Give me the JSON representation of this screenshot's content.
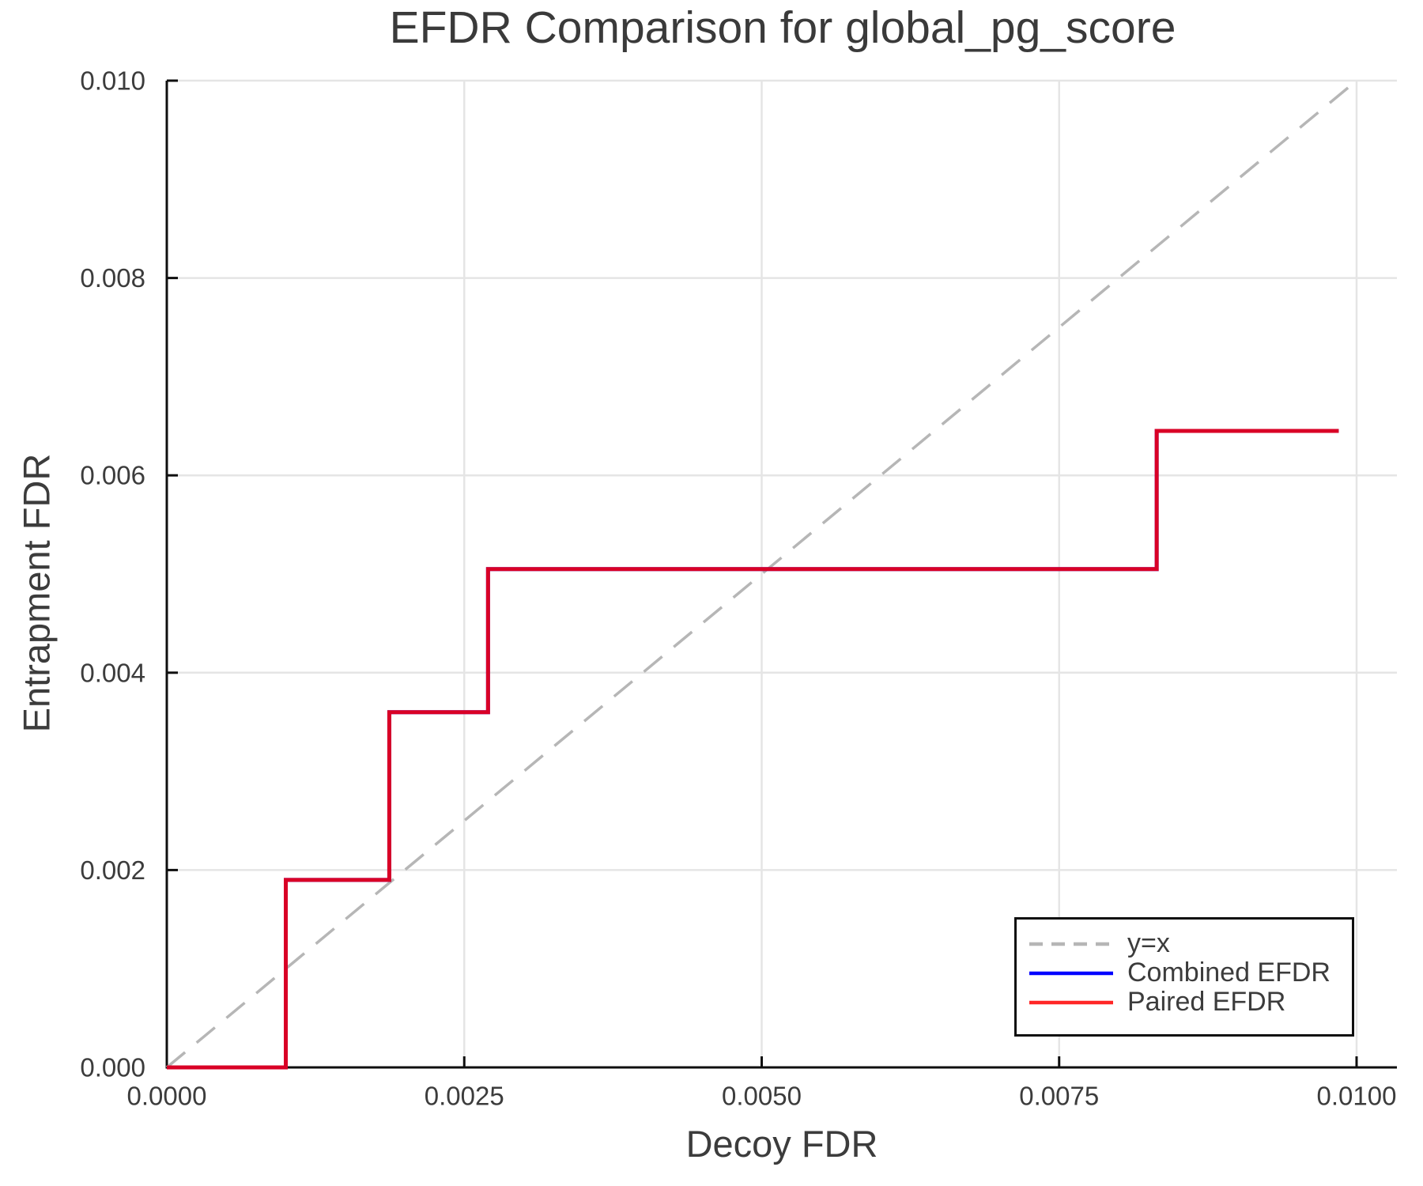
{
  "title": "EFDR Comparison for global_pg_score",
  "chart_data": {
    "type": "line",
    "title": "EFDR Comparison for global_pg_score",
    "xlabel": "Decoy FDR",
    "ylabel": "Entrapment FDR",
    "xlim": [
      0,
      0.010339
    ],
    "ylim": [
      0,
      0.01
    ],
    "grid": true,
    "legend_position": "lower right",
    "x_ticks": {
      "values": [
        0,
        0.0025,
        0.005,
        0.0075,
        0.01
      ],
      "labels": [
        "0.0000",
        "0.0025",
        "0.0050",
        "0.0075",
        "0.0100"
      ]
    },
    "y_ticks": {
      "values": [
        0,
        0.002,
        0.004,
        0.006,
        0.008,
        0.01
      ],
      "labels": [
        "0.000",
        "0.002",
        "0.004",
        "0.006",
        "0.008",
        "0.010"
      ]
    },
    "series": [
      {
        "name": "y=x",
        "type": "reference-line",
        "color": "#b6b6b6",
        "dashed": true,
        "width": 3.5,
        "opacity": 1,
        "x": [
          0,
          0.01
        ],
        "y": [
          0,
          0.01
        ]
      },
      {
        "name": "Combined EFDR",
        "type": "step",
        "color": "#0000ff",
        "dashed": false,
        "width": 5,
        "opacity": 1,
        "x": [
          0,
          0.001,
          0.001,
          0.00187,
          0.00187,
          0.0027,
          0.0027,
          0.00832,
          0.00832,
          0.00985
        ],
        "y": [
          0,
          0,
          0.0019,
          0.0019,
          0.0036,
          0.0036,
          0.00505,
          0.00505,
          0.00645,
          0.00645
        ]
      },
      {
        "name": "Paired EFDR",
        "type": "step",
        "color": "#ff0000",
        "dashed": false,
        "width": 5,
        "opacity": 0.85,
        "x": [
          0,
          0.001,
          0.001,
          0.00187,
          0.00187,
          0.0027,
          0.0027,
          0.00832,
          0.00832,
          0.00985
        ],
        "y": [
          0,
          0,
          0.0019,
          0.0019,
          0.0036,
          0.0036,
          0.00505,
          0.00505,
          0.00645,
          0.00645
        ]
      }
    ]
  },
  "legend": {
    "entries": [
      {
        "label": "y=x",
        "color": "#b6b6b6",
        "dashed": true,
        "opacity": 1
      },
      {
        "label": "Combined EFDR",
        "color": "#0000ff",
        "dashed": false,
        "opacity": 1
      },
      {
        "label": "Paired EFDR",
        "color": "#ff0000",
        "dashed": false,
        "opacity": 0.85
      }
    ]
  },
  "style": {
    "grid_color": "#e5e5e5",
    "spine_color": "#0f0f0f",
    "tick_color": "#0f0f0f",
    "text_color": "#3c3c3c"
  }
}
